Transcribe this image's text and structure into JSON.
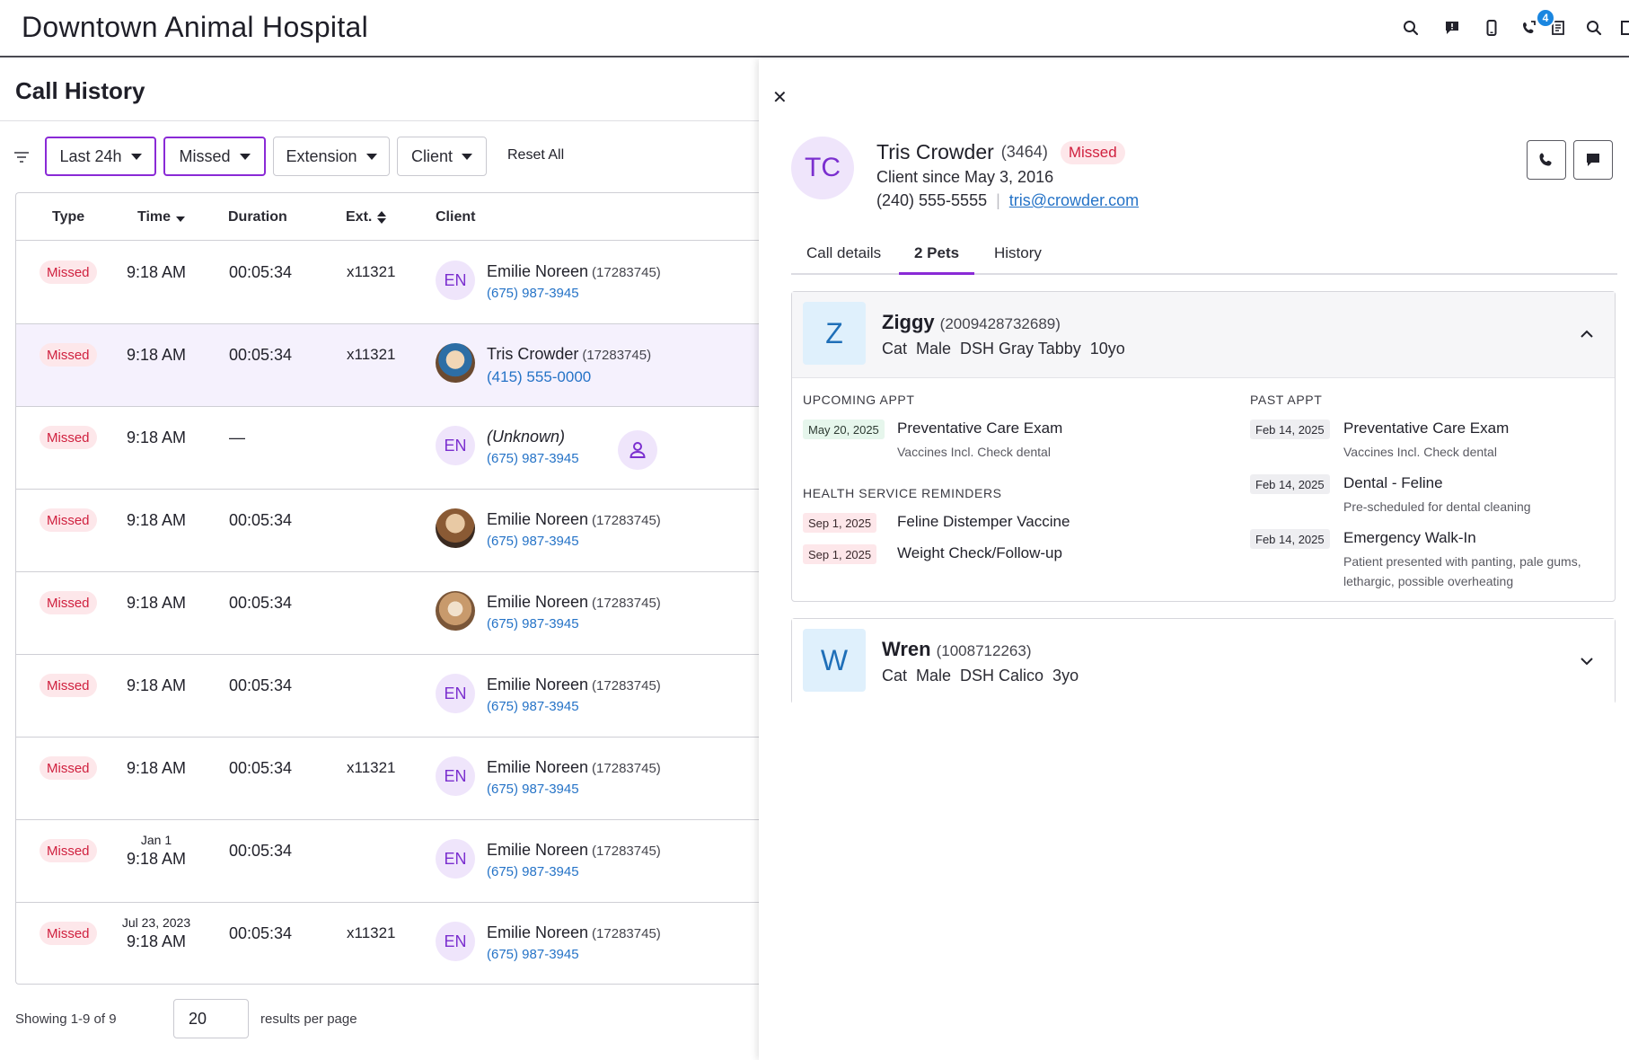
{
  "app": {
    "title": "Downtown Animal Hospital",
    "notification_count": "4",
    "icons": [
      "search-icon",
      "chat-alert-icon",
      "mobile-phone-icon",
      "phone-forward-icon",
      "fax-icon",
      "search-icon",
      "window-icon"
    ]
  },
  "history": {
    "title": "Call History",
    "filters": {
      "time_label": "Last 24h",
      "type_label": "Missed",
      "extension_label": "Extension",
      "client_label": "Client",
      "reset_label": "Reset All"
    },
    "columns": {
      "type": "Type",
      "time": "Time",
      "duration": "Duration",
      "ext": "Ext.",
      "client": "Client"
    },
    "rows": [
      {
        "type": "Missed",
        "date": "",
        "time": "9:18 AM",
        "duration": "00:05:34",
        "ext": "x11321",
        "initials": "EN",
        "name": "Emilie Noreen",
        "client_id": "(17283745)",
        "phone": "(675) 987-3945"
      },
      {
        "type": "Missed",
        "date": "",
        "time": "9:18 AM",
        "duration": "00:05:34",
        "ext": "x11321",
        "initials": "",
        "name": "Tris Crowder",
        "client_id": "(17283745)",
        "phone": "(415) 555-0000"
      },
      {
        "type": "Missed",
        "date": "",
        "time": "9:18 AM",
        "duration": "—",
        "ext": "",
        "initials": "EN",
        "name": "(Unknown)",
        "client_id": "",
        "phone": "(675) 987-3945"
      },
      {
        "type": "Missed",
        "date": "",
        "time": "9:18 AM",
        "duration": "00:05:34",
        "ext": "",
        "initials": "",
        "name": "Emilie Noreen",
        "client_id": "(17283745)",
        "phone": "(675) 987-3945"
      },
      {
        "type": "Missed",
        "date": "",
        "time": "9:18 AM",
        "duration": "00:05:34",
        "ext": "",
        "initials": "",
        "name": "Emilie Noreen",
        "client_id": "(17283745)",
        "phone": "(675) 987-3945"
      },
      {
        "type": "Missed",
        "date": "",
        "time": "9:18 AM",
        "duration": "00:05:34",
        "ext": "",
        "initials": "EN",
        "name": "Emilie Noreen",
        "client_id": "(17283745)",
        "phone": "(675) 987-3945"
      },
      {
        "type": "Missed",
        "date": "",
        "time": "9:18 AM",
        "duration": "00:05:34",
        "ext": "x11321",
        "initials": "EN",
        "name": "Emilie Noreen",
        "client_id": "(17283745)",
        "phone": "(675) 987-3945"
      },
      {
        "type": "Missed",
        "date": "Jan 1",
        "time": "9:18 AM",
        "duration": "00:05:34",
        "ext": "",
        "initials": "EN",
        "name": "Emilie Noreen",
        "client_id": "(17283745)",
        "phone": "(675) 987-3945"
      },
      {
        "type": "Missed",
        "date": "Jul 23, 2023",
        "time": "9:18 AM",
        "duration": "00:05:34",
        "ext": "x11321",
        "initials": "EN",
        "name": "Emilie Noreen",
        "client_id": "(17283745)",
        "phone": "(675) 987-3945"
      }
    ],
    "footer": {
      "showing": "Showing 1-9 of 9",
      "per_page_value": "20",
      "per_page_label": "results per page"
    }
  },
  "drawer": {
    "close": "✕",
    "client": {
      "initials": "TC",
      "name": "Tris Crowder",
      "id": "(3464)",
      "status": "Missed",
      "since": "Client since May 3, 2016",
      "phone": "(240) 555-5555",
      "separator": "|",
      "email": "tris@crowder.com"
    },
    "tabs": [
      "Call details",
      "2 Pets",
      "History"
    ],
    "active_tab": "2 Pets",
    "pets": [
      {
        "initial": "Z",
        "name": "Ziggy",
        "id": "(2009428732689)",
        "meta": "Cat  Male  DSH Gray Tabby  10yo",
        "expanded": true,
        "upcoming_title": "UPCOMING APPT",
        "upcoming": [
          {
            "date": "May 20, 2025",
            "title": "Preventative Care Exam",
            "note": "Vaccines Incl. Check dental"
          }
        ],
        "reminders_title": "HEALTH SERVICE REMINDERS",
        "reminders": [
          {
            "date": "Sep 1, 2025",
            "title": "Feline Distemper Vaccine"
          },
          {
            "date": "Sep 1, 2025",
            "title": "Weight Check/Follow-up"
          }
        ],
        "past_title": "PAST APPT",
        "past": [
          {
            "date": "Feb 14, 2025",
            "title": "Preventative Care Exam",
            "note": "Vaccines Incl. Check dental"
          },
          {
            "date": "Feb 14, 2025",
            "title": "Dental - Feline",
            "note": "Pre-scheduled for dental cleaning"
          },
          {
            "date": "Feb 14, 2025",
            "title": "Emergency Walk-In",
            "note": "Patient presented with panting, pale gums, lethargic, possible overheating"
          }
        ]
      },
      {
        "initial": "W",
        "name": "Wren",
        "id": "(1008712263)",
        "meta": "Cat  Male  DSH Calico  3yo",
        "expanded": false
      }
    ]
  },
  "colors": {
    "accent": "#8a2ad6",
    "missed_bg": "#fde7ea",
    "missed_text": "#d0213f",
    "link": "#2573c7",
    "notification": "#1a86e0"
  }
}
